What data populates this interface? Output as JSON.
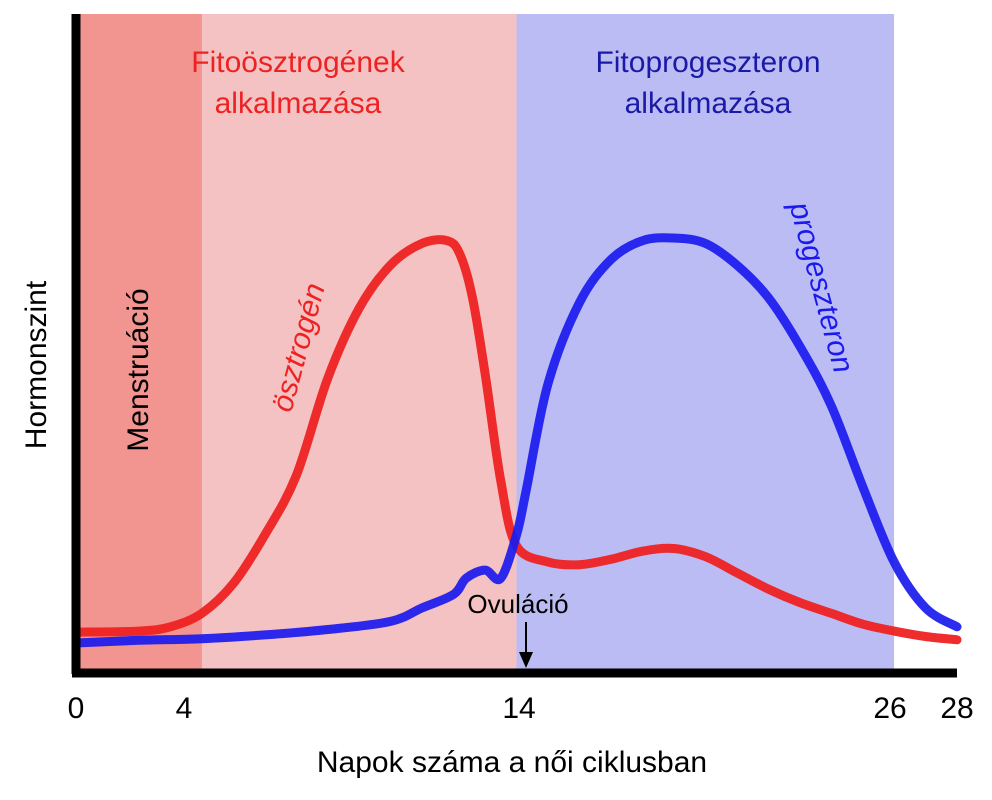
{
  "chart_data": {
    "type": "line",
    "ylabel": "Hormonszint",
    "xlabel": "Napok száma a női ciklusban",
    "xlim": [
      0,
      28
    ],
    "ylim": [
      0,
      10
    ],
    "ticks": [
      "0",
      "4",
      "14",
      "26",
      "28"
    ],
    "tick_values": [
      0,
      4,
      14,
      26,
      28
    ],
    "regions": [
      {
        "name": "menstruation",
        "label": "Menstruáció",
        "from": 0,
        "to": 4,
        "color": "#f29490"
      },
      {
        "name": "estrogen-phase",
        "label_lines": [
          "Fitoösztrogének",
          "alkalmazása"
        ],
        "from": 0,
        "to": 14,
        "color": "#f4c2c2",
        "text_color": "#ee2222"
      },
      {
        "name": "progesterone-phase",
        "label_lines": [
          "Fitoprogeszteron",
          "alkalmazása"
        ],
        "from": 14,
        "to": 26,
        "color": "#bcbcf5",
        "text_color": "#1a1aa8"
      }
    ],
    "annotation": {
      "label": "Ovuláció",
      "x": 14
    },
    "series": [
      {
        "name": "ösztrogén",
        "color": "#ee2222",
        "x": [
          0,
          2,
          3,
          4,
          5,
          6,
          7,
          8,
          9,
          10,
          11,
          11.8,
          12.2,
          12.6,
          13,
          13.5,
          14,
          15,
          16,
          17,
          18,
          19,
          20,
          21,
          22,
          23,
          24,
          25,
          26,
          27,
          28
        ],
        "y": [
          0.7,
          0.72,
          0.8,
          1.05,
          1.6,
          2.5,
          3.6,
          5.4,
          6.7,
          7.5,
          7.9,
          7.95,
          7.7,
          6.9,
          5.5,
          3.5,
          2.3,
          2.0,
          1.95,
          2.05,
          2.2,
          2.25,
          2.1,
          1.8,
          1.5,
          1.25,
          1.05,
          0.85,
          0.72,
          0.62,
          0.56
        ]
      },
      {
        "name": "progeszteron",
        "color": "#1a1aee",
        "x": [
          0,
          2,
          4,
          6,
          8,
          10,
          11,
          12,
          12.4,
          13,
          13.5,
          14,
          14.3,
          15,
          16,
          17,
          18,
          19,
          20,
          21,
          22,
          23,
          24,
          25,
          26,
          27,
          28
        ],
        "y": [
          0.5,
          0.55,
          0.58,
          0.65,
          0.75,
          0.9,
          1.15,
          1.4,
          1.7,
          1.85,
          1.7,
          2.5,
          3.3,
          5.3,
          6.8,
          7.6,
          7.95,
          8.0,
          7.9,
          7.5,
          6.9,
          6.0,
          4.9,
          3.4,
          2.0,
          1.15,
          0.8
        ]
      }
    ]
  }
}
